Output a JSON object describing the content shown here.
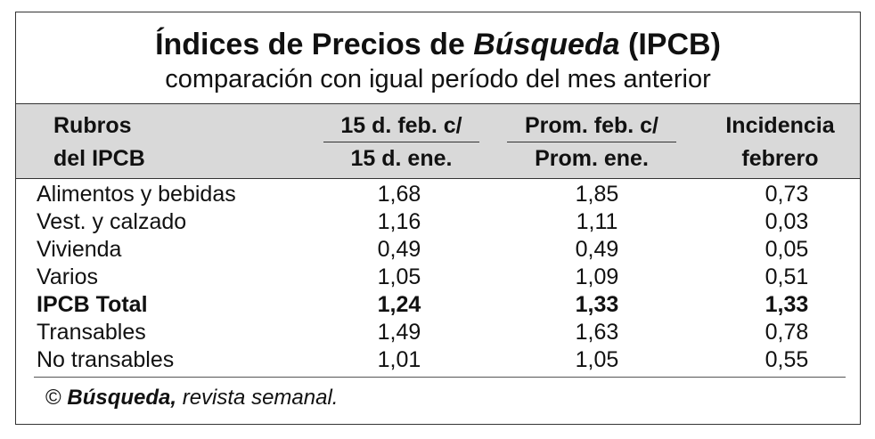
{
  "title": {
    "prefix": "Índices de Precios de ",
    "emphasis": "Búsqueda",
    "suffix": " (IPCB)"
  },
  "subtitle": "comparación con igual período del mes anterior",
  "header": {
    "col0": {
      "line1": "Rubros",
      "line2": "del IPCB"
    },
    "col1": {
      "line1": "15 d. feb. c/",
      "line2": "15 d. ene."
    },
    "col2": {
      "line1": "Prom. feb. c/",
      "line2": "Prom. ene."
    },
    "col3": {
      "line1": "Incidencia",
      "line2": "febrero"
    }
  },
  "rows": [
    {
      "label": "Alimentos y bebidas",
      "v1": "1,68",
      "v2": "1,85",
      "v3": "0,73",
      "bold": false
    },
    {
      "label": "Vest. y calzado",
      "v1": "1,16",
      "v2": "1,11",
      "v3": "0,03",
      "bold": false
    },
    {
      "label": "Vivienda",
      "v1": "0,49",
      "v2": "0,49",
      "v3": "0,05",
      "bold": false
    },
    {
      "label": "Varios",
      "v1": "1,05",
      "v2": "1,09",
      "v3": "0,51",
      "bold": false
    },
    {
      "label": "IPCB Total",
      "v1": "1,24",
      "v2": "1,33",
      "v3": "1,33",
      "bold": true
    },
    {
      "label": "Transables",
      "v1": "1,49",
      "v2": "1,63",
      "v3": "0,78",
      "bold": false
    },
    {
      "label": "No transables",
      "v1": "1,01",
      "v2": "1,05",
      "v3": "0,55",
      "bold": false
    }
  ],
  "footer": {
    "copyright": "© ",
    "brand": "Búsqueda,",
    "rest": " revista semanal."
  },
  "colors": {
    "header_band": "#d9d9d9",
    "border": "#333333",
    "text": "#111111"
  }
}
